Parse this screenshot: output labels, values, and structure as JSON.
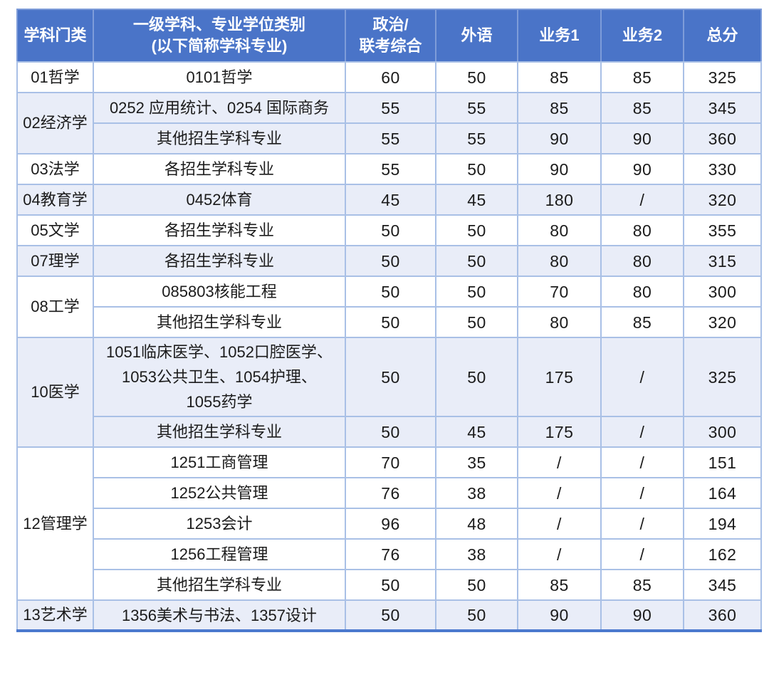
{
  "colors": {
    "header_bg": "#4a74c8",
    "header_text": "#ffffff",
    "header_border": "#7e9cd9",
    "grid_border": "#a9c0e6",
    "outer_bottom_border": "#4b79ce",
    "row_bg": "#ffffff",
    "row_alt_bg": "#e9edf8",
    "body_text": "#1b1b1b"
  },
  "table": {
    "headers": [
      {
        "id": "category",
        "text": "学科门类"
      },
      {
        "id": "major",
        "text": "一级学科、专业学位类别\n(以下简称学科专业)"
      },
      {
        "id": "politics",
        "text": "政治/\n联考综合"
      },
      {
        "id": "foreign",
        "text": "外语"
      },
      {
        "id": "business1",
        "text": "业务1"
      },
      {
        "id": "business2",
        "text": "业务2"
      },
      {
        "id": "total",
        "text": "总分"
      }
    ],
    "groups": [
      {
        "category": "01哲学",
        "shaded": false,
        "rows": [
          {
            "major": "0101哲学",
            "politics": "60",
            "foreign": "50",
            "business1": "85",
            "business2": "85",
            "total": "325"
          }
        ]
      },
      {
        "category": "02经济学",
        "shaded": true,
        "rows": [
          {
            "major": "0252 应用统计、0254 国际商务",
            "politics": "55",
            "foreign": "55",
            "business1": "85",
            "business2": "85",
            "total": "345"
          },
          {
            "major": "其他招生学科专业",
            "politics": "55",
            "foreign": "55",
            "business1": "90",
            "business2": "90",
            "total": "360"
          }
        ]
      },
      {
        "category": "03法学",
        "shaded": false,
        "rows": [
          {
            "major": "各招生学科专业",
            "politics": "55",
            "foreign": "50",
            "business1": "90",
            "business2": "90",
            "total": "330"
          }
        ]
      },
      {
        "category": "04教育学",
        "shaded": true,
        "rows": [
          {
            "major": "0452体育",
            "politics": "45",
            "foreign": "45",
            "business1": "180",
            "business2": "/",
            "total": "320"
          }
        ]
      },
      {
        "category": "05文学",
        "shaded": false,
        "rows": [
          {
            "major": "各招生学科专业",
            "politics": "50",
            "foreign": "50",
            "business1": "80",
            "business2": "80",
            "total": "355"
          }
        ]
      },
      {
        "category": "07理学",
        "shaded": true,
        "rows": [
          {
            "major": "各招生学科专业",
            "politics": "50",
            "foreign": "50",
            "business1": "80",
            "business2": "80",
            "total": "315"
          }
        ]
      },
      {
        "category": "08工学",
        "shaded": false,
        "rows": [
          {
            "major": "085803核能工程",
            "politics": "50",
            "foreign": "50",
            "business1": "70",
            "business2": "80",
            "total": "300"
          },
          {
            "major": "其他招生学科专业",
            "politics": "50",
            "foreign": "50",
            "business1": "80",
            "business2": "85",
            "total": "320"
          }
        ]
      },
      {
        "category": "10医学",
        "shaded": true,
        "rows": [
          {
            "major": "1051临床医学、1052口腔医学、\n1053公共卫生、1054护理、\n1055药学",
            "politics": "50",
            "foreign": "50",
            "business1": "175",
            "business2": "/",
            "total": "325"
          },
          {
            "major": "其他招生学科专业",
            "politics": "50",
            "foreign": "45",
            "business1": "175",
            "business2": "/",
            "total": "300"
          }
        ]
      },
      {
        "category": "12管理学",
        "shaded": false,
        "rows": [
          {
            "major": "1251工商管理",
            "politics": "70",
            "foreign": "35",
            "business1": "/",
            "business2": "/",
            "total": "151"
          },
          {
            "major": "1252公共管理",
            "politics": "76",
            "foreign": "38",
            "business1": "/",
            "business2": "/",
            "total": "164"
          },
          {
            "major": "1253会计",
            "politics": "96",
            "foreign": "48",
            "business1": "/",
            "business2": "/",
            "total": "194"
          },
          {
            "major": "1256工程管理",
            "politics": "76",
            "foreign": "38",
            "business1": "/",
            "business2": "/",
            "total": "162"
          },
          {
            "major": "其他招生学科专业",
            "politics": "50",
            "foreign": "50",
            "business1": "85",
            "business2": "85",
            "total": "345"
          }
        ]
      },
      {
        "category": "13艺术学",
        "shaded": true,
        "rows": [
          {
            "major": "1356美术与书法、1357设计",
            "politics": "50",
            "foreign": "50",
            "business1": "90",
            "business2": "90",
            "total": "360"
          }
        ]
      }
    ]
  }
}
